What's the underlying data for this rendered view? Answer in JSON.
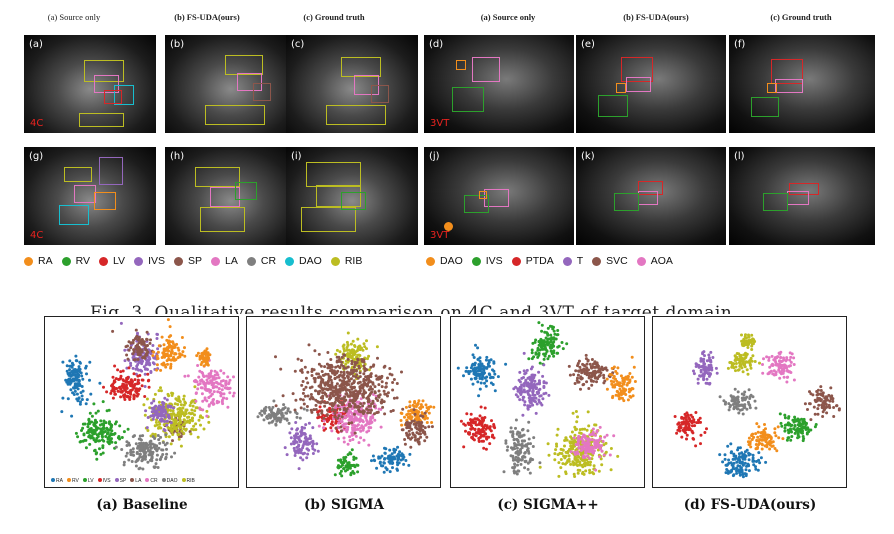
{
  "left_headers": [
    "(a) Source only",
    "(b) FS-UDA(ours)",
    "(c) Ground truth"
  ],
  "right_headers": [
    "(a) Source only",
    "(b) FS-UDA(ours)",
    "(c) Ground truth"
  ],
  "panels_left": [
    {
      "id": "(a)",
      "tag": "4C"
    },
    {
      "id": "(b)",
      "tag": ""
    },
    {
      "id": "(c)",
      "tag": ""
    },
    {
      "id": "(g)",
      "tag": "4C"
    },
    {
      "id": "(h)",
      "tag": ""
    },
    {
      "id": "(i)",
      "tag": ""
    }
  ],
  "panels_right": [
    {
      "id": "(d)",
      "tag": "3VT"
    },
    {
      "id": "(e)",
      "tag": ""
    },
    {
      "id": "(f)",
      "tag": ""
    },
    {
      "id": "(j)",
      "tag": "3VT"
    },
    {
      "id": "(k)",
      "tag": ""
    },
    {
      "id": "(l)",
      "tag": ""
    }
  ],
  "legend_4c": [
    {
      "label": "RA",
      "color": "#f28e1c"
    },
    {
      "label": "RV",
      "color": "#2ca02c"
    },
    {
      "label": "LV",
      "color": "#d62728"
    },
    {
      "label": "IVS",
      "color": "#9467bd"
    },
    {
      "label": "SP",
      "color": "#8c564b"
    },
    {
      "label": "LA",
      "color": "#e377c2"
    },
    {
      "label": "CR",
      "color": "#7f7f7f"
    },
    {
      "label": "DAO",
      "color": "#17becf"
    },
    {
      "label": "RIB",
      "color": "#bcbd22"
    }
  ],
  "legend_3vt": [
    {
      "label": "DAO",
      "color": "#f28e1c"
    },
    {
      "label": "IVS",
      "color": "#2ca02c"
    },
    {
      "label": "PTDA",
      "color": "#d62728"
    },
    {
      "label": "T",
      "color": "#9467bd"
    },
    {
      "label": "SVC",
      "color": "#8c564b"
    },
    {
      "label": "AOA",
      "color": "#e377c2"
    }
  ],
  "figure_caption": "Fig. 3. Qualitative results comparison on 4C and 3VT of target domain.",
  "tsne_plots": [
    {
      "caption": "(a) Baseline"
    },
    {
      "caption": "(b) SIGMA"
    },
    {
      "caption": "(c) SIGMA++"
    },
    {
      "caption": "(d) FS-UDA(ours)"
    }
  ],
  "tsne_legend": [
    "RA",
    "RV",
    "LV",
    "IVS",
    "SP",
    "LA",
    "CR",
    "DAO",
    "RIB"
  ]
}
